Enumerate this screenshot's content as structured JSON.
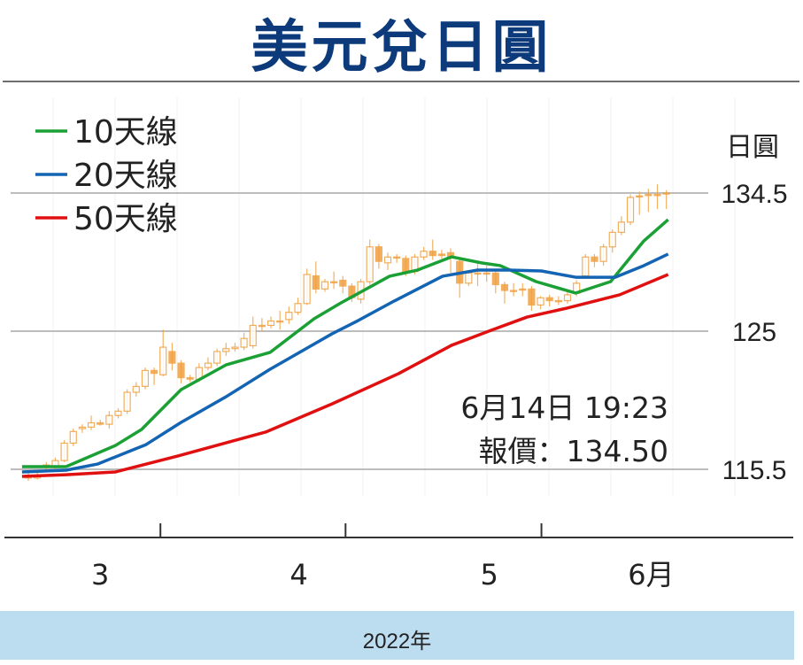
{
  "chart_data": {
    "type": "candlestick-line",
    "title": "美元兌日圓",
    "ylabel": "日圓",
    "xlabel": "2022年",
    "ylim": [
      110.5,
      137
    ],
    "yticks": [
      {
        "value": 134.5,
        "label": "134.5"
      },
      {
        "value": 125,
        "label": "125"
      },
      {
        "value": 115.5,
        "label": "115.5"
      }
    ],
    "month_ticks": [
      14.7,
      35.3,
      57.1
    ],
    "month_labels": [
      {
        "pos": 8,
        "label": "3"
      },
      {
        "pos": 30.1,
        "label": "4"
      },
      {
        "pos": 51.3,
        "label": "5"
      },
      {
        "pos": 69.3,
        "label": "6月"
      }
    ],
    "legend": [
      {
        "name": "10天線",
        "color": "#1aa035"
      },
      {
        "name": "20天線",
        "color": "#1464b4"
      },
      {
        "name": "50天線",
        "color": "#e01010"
      }
    ],
    "annotation": {
      "line1": "6月14日 19:23",
      "line2": "報價：134.50"
    },
    "candle_color": "#f0a040",
    "candles": [
      [
        115.1,
        115.3,
        114.7,
        114.9
      ],
      [
        114.9,
        115.3,
        114.8,
        115.1
      ],
      [
        115.7,
        116.0,
        115.5,
        115.8
      ],
      [
        115.7,
        116.3,
        115.5,
        116.1
      ],
      [
        116.1,
        117.5,
        116.0,
        117.3
      ],
      [
        117.3,
        118.3,
        117.1,
        118.1
      ],
      [
        118.3,
        118.6,
        118.0,
        118.4
      ],
      [
        118.4,
        119.2,
        118.2,
        118.7
      ],
      [
        118.7,
        118.9,
        118.5,
        118.6
      ],
      [
        118.6,
        119.5,
        118.3,
        119.2
      ],
      [
        119.2,
        119.7,
        119.0,
        119.5
      ],
      [
        119.5,
        121.0,
        119.3,
        120.8
      ],
      [
        120.8,
        121.5,
        120.5,
        121.2
      ],
      [
        121.2,
        122.5,
        121.0,
        122.3
      ],
      [
        122.3,
        122.5,
        121.3,
        122.1
      ],
      [
        122.0,
        125.1,
        121.9,
        123.9
      ],
      [
        123.6,
        124.2,
        122.3,
        122.8
      ],
      [
        122.8,
        123.0,
        121.4,
        121.8
      ],
      [
        121.8,
        122.0,
        121.5,
        121.7
      ],
      [
        121.7,
        122.8,
        121.5,
        122.5
      ],
      [
        122.5,
        123.2,
        122.3,
        122.8
      ],
      [
        122.8,
        123.8,
        122.6,
        123.6
      ],
      [
        123.6,
        124.2,
        123.3,
        123.8
      ],
      [
        123.8,
        124.2,
        123.6,
        123.9
      ],
      [
        123.9,
        124.9,
        123.7,
        124.5
      ],
      [
        124.0,
        126.0,
        123.8,
        125.4
      ],
      [
        125.4,
        125.9,
        125.0,
        125.4
      ],
      [
        125.4,
        126.0,
        125.2,
        125.7
      ],
      [
        125.7,
        126.4,
        125.1,
        125.7
      ],
      [
        125.8,
        126.7,
        125.5,
        126.3
      ],
      [
        126.3,
        127.3,
        126.1,
        126.9
      ],
      [
        126.9,
        129.3,
        126.8,
        128.9
      ],
      [
        128.8,
        129.8,
        127.6,
        127.9
      ],
      [
        127.9,
        128.6,
        127.7,
        128.4
      ],
      [
        128.4,
        129.1,
        127.9,
        128.4
      ],
      [
        128.5,
        128.8,
        127.6,
        128.1
      ],
      [
        128.1,
        128.3,
        127.0,
        127.3
      ],
      [
        127.2,
        128.6,
        126.9,
        128.4
      ],
      [
        128.4,
        131.3,
        128.2,
        130.8
      ],
      [
        130.8,
        131.0,
        129.3,
        129.8
      ],
      [
        129.7,
        130.4,
        129.2,
        130.1
      ],
      [
        130.1,
        130.3,
        129.7,
        130.1
      ],
      [
        130.0,
        130.2,
        128.8,
        129.1
      ],
      [
        129.1,
        130.3,
        128.9,
        130.1
      ],
      [
        130.1,
        130.8,
        129.9,
        130.5
      ],
      [
        130.5,
        131.3,
        129.9,
        130.2
      ],
      [
        130.3,
        130.6,
        130.0,
        130.2
      ],
      [
        130.4,
        130.7,
        129.0,
        130.1
      ],
      [
        129.8,
        130.0,
        127.3,
        128.3
      ],
      [
        128.3,
        129.2,
        128.1,
        129.0
      ],
      [
        129.0,
        129.8,
        128.1,
        129.0
      ],
      [
        129.0,
        129.5,
        128.4,
        129.0
      ],
      [
        129.0,
        129.2,
        127.6,
        128.2
      ],
      [
        128.2,
        128.4,
        126.9,
        127.8
      ],
      [
        127.8,
        128.3,
        127.4,
        127.8
      ],
      [
        127.9,
        128.3,
        127.4,
        127.9
      ],
      [
        127.9,
        128.1,
        126.4,
        126.8
      ],
      [
        126.8,
        127.4,
        126.5,
        127.3
      ],
      [
        127.3,
        127.5,
        126.7,
        127.1
      ],
      [
        127.1,
        127.4,
        126.8,
        127.1
      ],
      [
        127.1,
        127.7,
        126.9,
        127.5
      ],
      [
        127.6,
        128.5,
        127.4,
        128.3
      ],
      [
        128.8,
        130.3,
        128.6,
        130.1
      ],
      [
        130.1,
        130.3,
        129.4,
        129.8
      ],
      [
        129.8,
        131.0,
        129.5,
        130.8
      ],
      [
        130.8,
        132.0,
        130.4,
        131.8
      ],
      [
        131.8,
        132.9,
        131.6,
        132.5
      ],
      [
        132.5,
        134.4,
        132.3,
        134.2
      ],
      [
        134.3,
        134.6,
        133.0,
        134.3
      ],
      [
        134.4,
        134.8,
        133.2,
        134.4
      ],
      [
        134.4,
        135.1,
        133.4,
        134.4
      ],
      [
        134.5,
        134.7,
        133.4,
        134.5
      ]
    ],
    "series": [
      {
        "name": "10天線",
        "color": "#1aa035",
        "points": [
          [
            -0.7,
            115.68
          ],
          [
            4.2,
            115.68
          ],
          [
            9.7,
            117.14
          ],
          [
            12.6,
            118.24
          ],
          [
            17.0,
            120.98
          ],
          [
            22.0,
            122.68
          ],
          [
            26.9,
            123.54
          ],
          [
            31.8,
            125.85
          ],
          [
            34.8,
            126.95
          ],
          [
            40.2,
            128.78
          ],
          [
            43.3,
            129.2
          ],
          [
            47.1,
            130.11
          ],
          [
            50.5,
            129.69
          ],
          [
            52.5,
            129.51
          ],
          [
            56.5,
            128.41
          ],
          [
            60.9,
            127.62
          ],
          [
            64.8,
            128.41
          ],
          [
            68.5,
            131.21
          ],
          [
            71.2,
            132.67
          ]
        ]
      },
      {
        "name": "20天線",
        "color": "#1464b4",
        "points": [
          [
            -0.7,
            115.32
          ],
          [
            4.2,
            115.44
          ],
          [
            7.7,
            115.86
          ],
          [
            13.1,
            117.2
          ],
          [
            17.0,
            118.73
          ],
          [
            22.0,
            120.49
          ],
          [
            26.9,
            122.38
          ],
          [
            33.8,
            124.82
          ],
          [
            36.7,
            125.73
          ],
          [
            40.7,
            127.07
          ],
          [
            46.1,
            128.78
          ],
          [
            50.0,
            129.2
          ],
          [
            53.5,
            129.2
          ],
          [
            57.1,
            129.14
          ],
          [
            60.9,
            128.71
          ],
          [
            65.3,
            128.71
          ],
          [
            68.5,
            129.51
          ],
          [
            71.2,
            130.3
          ]
        ]
      },
      {
        "name": "50天線",
        "color": "#e01010",
        "points": [
          [
            -0.7,
            115.01
          ],
          [
            4.2,
            115.13
          ],
          [
            9.7,
            115.32
          ],
          [
            16.6,
            116.41
          ],
          [
            26.4,
            118.06
          ],
          [
            33.8,
            120.0
          ],
          [
            41.2,
            122.08
          ],
          [
            47.1,
            124.03
          ],
          [
            51.5,
            125.06
          ],
          [
            55.5,
            125.97
          ],
          [
            59.9,
            126.58
          ],
          [
            65.8,
            127.5
          ],
          [
            71.2,
            128.9
          ]
        ]
      }
    ]
  }
}
